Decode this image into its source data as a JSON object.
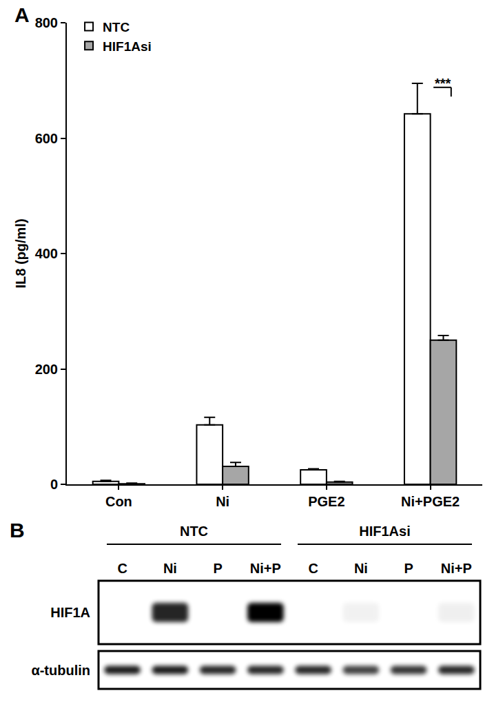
{
  "chart_data": {
    "type": "bar",
    "annotations": [
      {
        "text": "A"
      },
      {
        "text": "***",
        "category": "Ni+PGE2"
      }
    ],
    "y_label": "IL8 (pg/ml)",
    "categories": [
      "Con",
      "Ni",
      "PGE2",
      "Ni+PGE2"
    ],
    "series": [
      {
        "name": "NTC",
        "color": "#ffffff",
        "values": [
          5,
          103,
          25,
          642
        ],
        "errors": [
          2,
          13,
          2,
          53
        ]
      },
      {
        "name": "HIF1Asi",
        "color": "#a6a6a6",
        "values": [
          1,
          31,
          4,
          250
        ],
        "errors": [
          1,
          7,
          1,
          8
        ]
      }
    ],
    "ylim": [
      0,
      800
    ],
    "yticks": [
      0,
      200,
      400,
      600,
      800
    ],
    "grid": false,
    "legend": "top left"
  },
  "blot": {
    "panel_label": "B",
    "groups": [
      {
        "label": "NTC",
        "lanes": [
          "C",
          "Ni",
          "P",
          "Ni+P"
        ]
      },
      {
        "label": "HIF1Asi",
        "lanes": [
          "C",
          "Ni",
          "P",
          "Ni+P"
        ]
      }
    ],
    "rows": [
      {
        "label": "HIF1A",
        "intensity": [
          0,
          0.85,
          0,
          1,
          0,
          0.05,
          0,
          0.06
        ]
      },
      {
        "label": "α-tubulin",
        "intensity": [
          0.9,
          0.9,
          0.85,
          0.85,
          0.85,
          0.75,
          0.8,
          0.85
        ]
      }
    ]
  }
}
